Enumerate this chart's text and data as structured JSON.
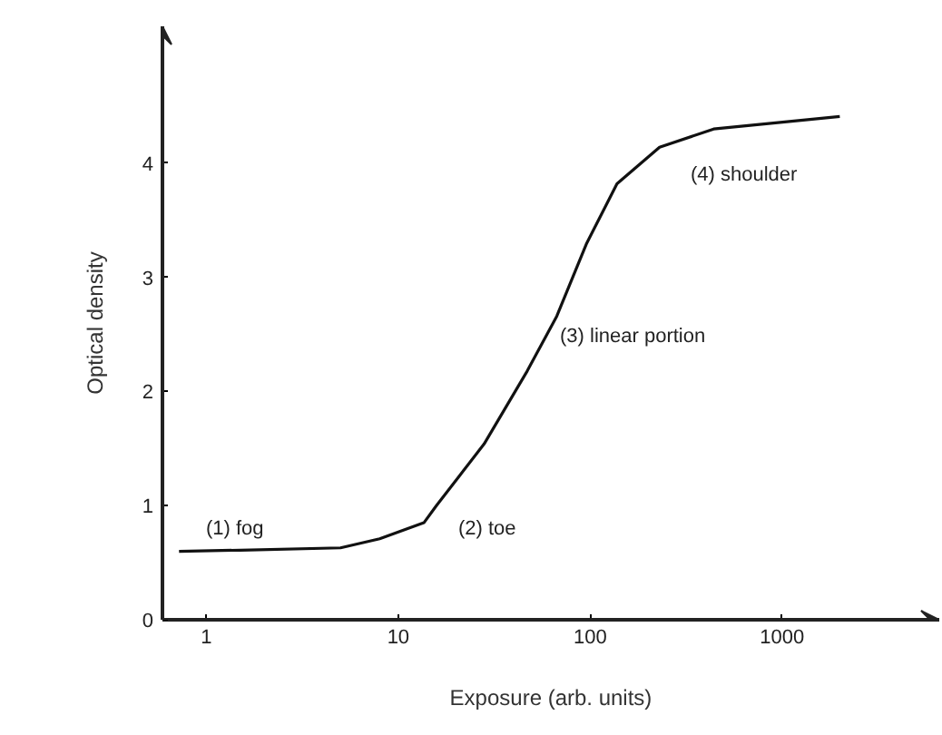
{
  "chart_data": {
    "type": "line",
    "xlabel": "Exposure (arb. units)",
    "ylabel": "Optical density",
    "log": "x",
    "xlim": [
      0.59,
      6600
    ],
    "ylim": [
      0,
      5.2
    ],
    "xticks": [
      1,
      10,
      100,
      1000
    ],
    "yticks": [
      0,
      1,
      2,
      3,
      4
    ],
    "grid": false,
    "marker": "none",
    "line_style": "solid",
    "series": [
      {
        "color": "#111111",
        "x": [
          0.72,
          1.5,
          5,
          8,
          13.6,
          15.8,
          28,
          47,
          67,
          96,
          138,
          230,
          440,
          2000
        ],
        "values": [
          0.6,
          0.61,
          0.63,
          0.71,
          0.85,
          1.0,
          1.54,
          2.18,
          2.66,
          3.3,
          3.82,
          4.14,
          4.3,
          4.41
        ]
      }
    ],
    "annotations": [
      "(1) fog",
      "(2) toe",
      "(3) linear portion",
      "(4) shoulder"
    ]
  }
}
